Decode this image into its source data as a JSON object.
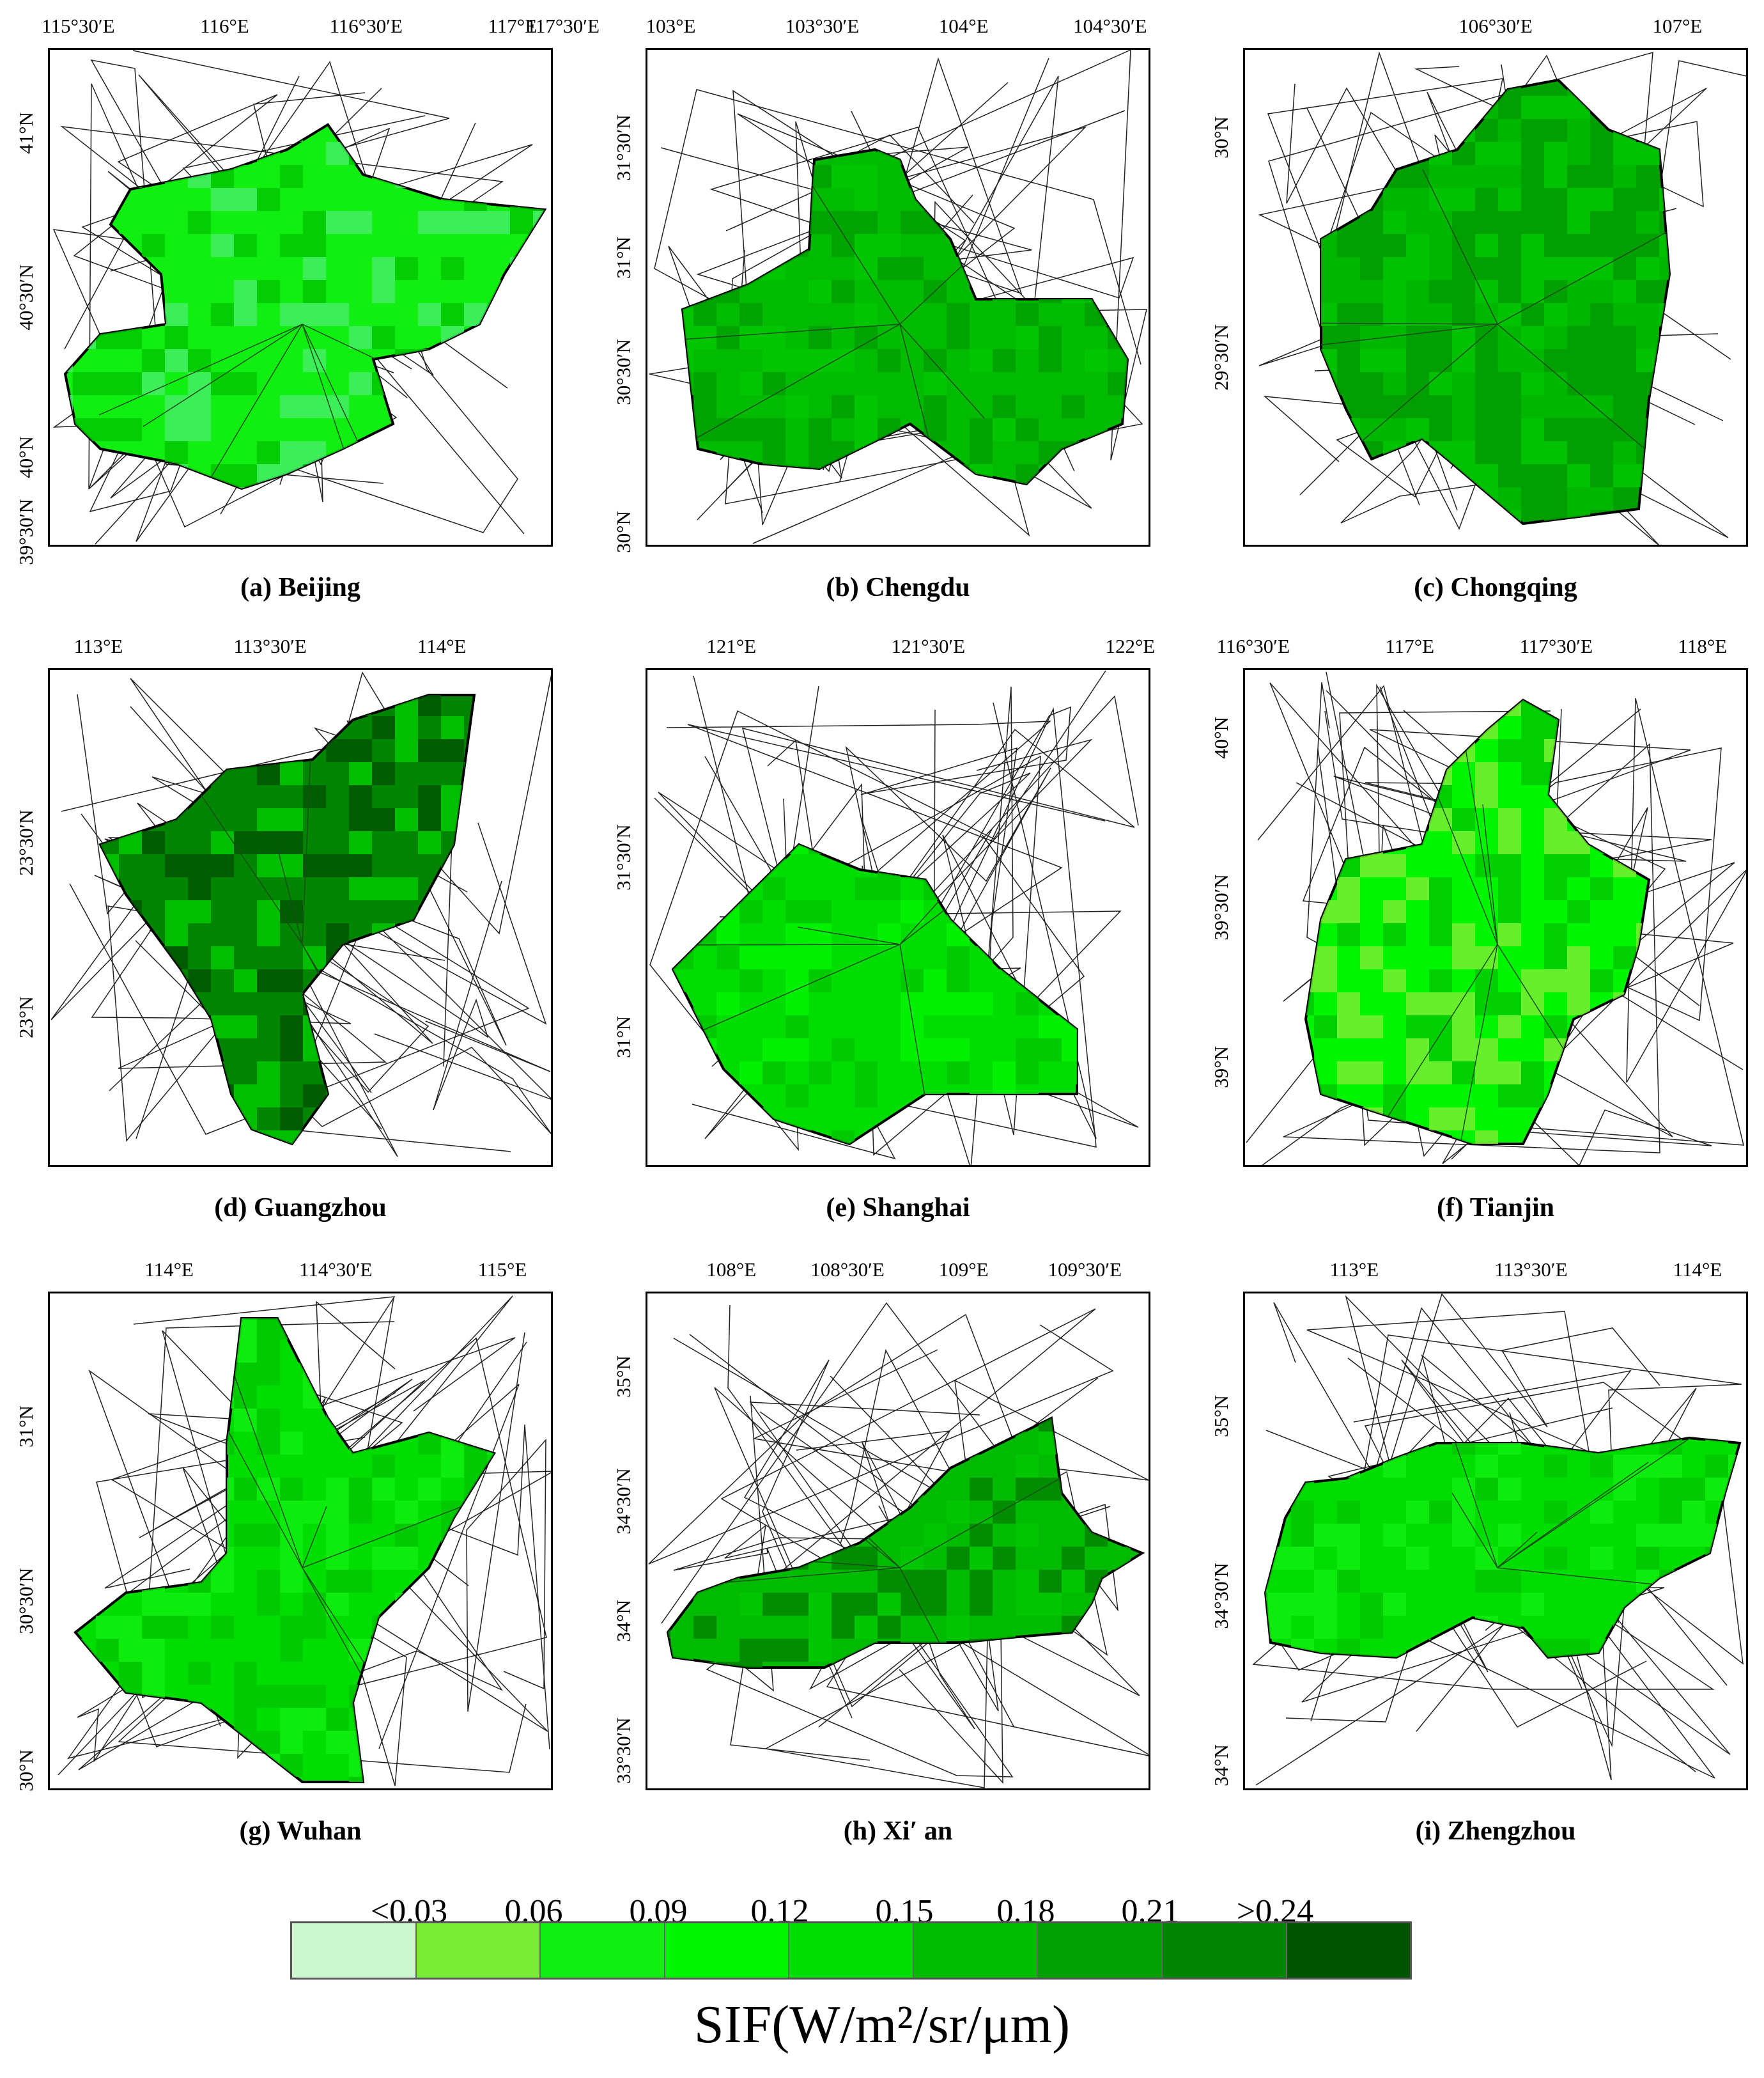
{
  "figure": {
    "legend_labels": [
      "<0.03",
      "0.06",
      "0.09",
      "0.12",
      "0.15",
      "0.18",
      "0.21",
      ">0.24"
    ],
    "legend_colors": [
      "#ccf7cf",
      "#77ee33",
      "#11ee11",
      "#00f500",
      "#00dd00",
      "#00bb00",
      "#00a000",
      "#008500",
      "#005500"
    ],
    "legend_title": "SIF(W/m²/sr/μm)"
  },
  "panels": [
    {
      "caption": "(a) Beijing",
      "x_ticks": [
        "115°30′E",
        "116°E",
        "116°30′E",
        "117°E",
        "117°30′E"
      ],
      "y_ticks": [
        "41°N",
        "40°30′N",
        "40°N",
        "39°30′N"
      ],
      "dominant": "#11ee11",
      "extra": "#44ee66"
    },
    {
      "caption": "(b) Chengdu",
      "x_ticks": [
        "103°E",
        "103°30′E",
        "104°E",
        "104°30′E"
      ],
      "y_ticks": [
        "31°30′N",
        "31°N",
        "30°30′N",
        "30°N"
      ],
      "dominant": "#00bb00",
      "extra": "#00a000"
    },
    {
      "caption": "(c) Chongqing",
      "x_ticks": [
        "106°30′E",
        "107°E"
      ],
      "y_ticks": [
        "30°N",
        "29°30′N"
      ],
      "dominant": "#00a000",
      "extra": "#00bb00"
    },
    {
      "caption": "(d) Guangzhou",
      "x_ticks": [
        "113°E",
        "113°30′E",
        "114°E"
      ],
      "y_ticks": [
        "23°30′N",
        "23°N"
      ],
      "dominant": "#008500",
      "extra": "#005500"
    },
    {
      "caption": "(e) Shanghai",
      "x_ticks": [
        "121°E",
        "121°30′E",
        "122°E"
      ],
      "y_ticks": [
        "31°30′N",
        "31°N"
      ],
      "dominant": "#00dd00",
      "extra": "#00f500"
    },
    {
      "caption": "(f) Tianjin",
      "x_ticks": [
        "116°30′E",
        "117°E",
        "117°30′E",
        "118°E"
      ],
      "y_ticks": [
        "40°N",
        "39°30′N",
        "39°N"
      ],
      "dominant": "#00f500",
      "extra": "#77ee33"
    },
    {
      "caption": "(g) Wuhan",
      "x_ticks": [
        "114°E",
        "114°30′E",
        "115°E"
      ],
      "y_ticks": [
        "31°N",
        "30°30′N",
        "30°N"
      ],
      "dominant": "#00dd00",
      "extra": "#11ee11"
    },
    {
      "caption": "(h) Xi′ an",
      "x_ticks": [
        "108°E",
        "108°30′E",
        "109°E",
        "109°30′E"
      ],
      "y_ticks": [
        "35°N",
        "34°30′N",
        "34°N",
        "33°30′N"
      ],
      "dominant": "#00bb00",
      "extra": "#008500"
    },
    {
      "caption": "(i) Zhengzhou",
      "x_ticks": [
        "113°E",
        "113°30′E",
        "114°E"
      ],
      "y_ticks": [
        "35°N",
        "34°30′N",
        "34°N"
      ],
      "dominant": "#00dd00",
      "extra": "#11ee11"
    }
  ]
}
